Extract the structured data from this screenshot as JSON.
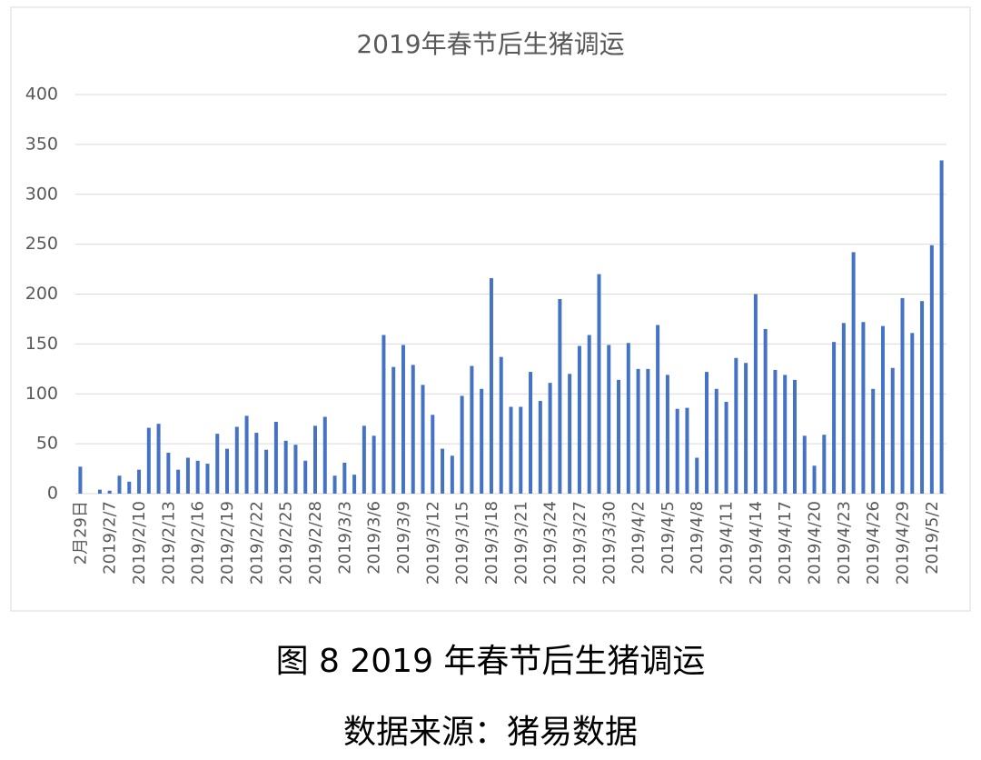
{
  "chart_data": {
    "type": "bar",
    "title": "2019年春节后生猪调运",
    "categories": [
      "2月29日",
      null,
      null,
      "2019/2/7",
      null,
      null,
      "2019/2/10",
      null,
      null,
      "2019/2/13",
      null,
      null,
      "2019/2/16",
      null,
      null,
      "2019/2/19",
      null,
      null,
      "2019/2/22",
      null,
      null,
      "2019/2/25",
      null,
      null,
      "2019/2/28",
      null,
      null,
      "2019/3/3",
      null,
      null,
      "2019/3/6",
      null,
      null,
      "2019/3/9",
      null,
      null,
      "2019/3/12",
      null,
      null,
      "2019/3/15",
      null,
      null,
      "2019/3/18",
      null,
      null,
      "2019/3/21",
      null,
      null,
      "2019/3/24",
      null,
      null,
      "2019/3/27",
      null,
      null,
      "2019/3/30",
      null,
      null,
      "2019/4/2",
      null,
      null,
      "2019/4/5",
      null,
      null,
      "2019/4/8",
      null,
      null,
      "2019/4/11",
      null,
      null,
      "2019/4/14",
      null,
      null,
      "2019/4/17",
      null,
      null,
      "2019/4/20",
      null,
      null,
      "2019/4/23",
      null,
      null,
      "2019/4/26",
      null,
      null,
      "2019/4/29",
      null,
      null,
      "2019/5/2",
      null
    ],
    "values": [
      27,
      0,
      4,
      3,
      18,
      12,
      24,
      66,
      70,
      41,
      24,
      36,
      33,
      30,
      60,
      45,
      67,
      78,
      61,
      44,
      72,
      53,
      49,
      33,
      68,
      77,
      18,
      31,
      19,
      68,
      58,
      159,
      127,
      149,
      129,
      109,
      79,
      45,
      38,
      98,
      128,
      105,
      216,
      137,
      87,
      87,
      122,
      93,
      111,
      195,
      120,
      148,
      159,
      220,
      149,
      114,
      151,
      125,
      125,
      169,
      119,
      85,
      86,
      36,
      122,
      105,
      92,
      136,
      131,
      200,
      165,
      124,
      119,
      114,
      58,
      28,
      59,
      152,
      171,
      242,
      172,
      105,
      168,
      126,
      196,
      161,
      193,
      249,
      334
    ],
    "color": "#4472c4",
    "ylim": [
      0,
      400
    ],
    "yticks": [
      0,
      50,
      100,
      150,
      200,
      250,
      300,
      350,
      400
    ],
    "grid": true
  },
  "caption": "图 8 2019 年春节后生猪调运",
  "source": "数据来源：猪易数据"
}
